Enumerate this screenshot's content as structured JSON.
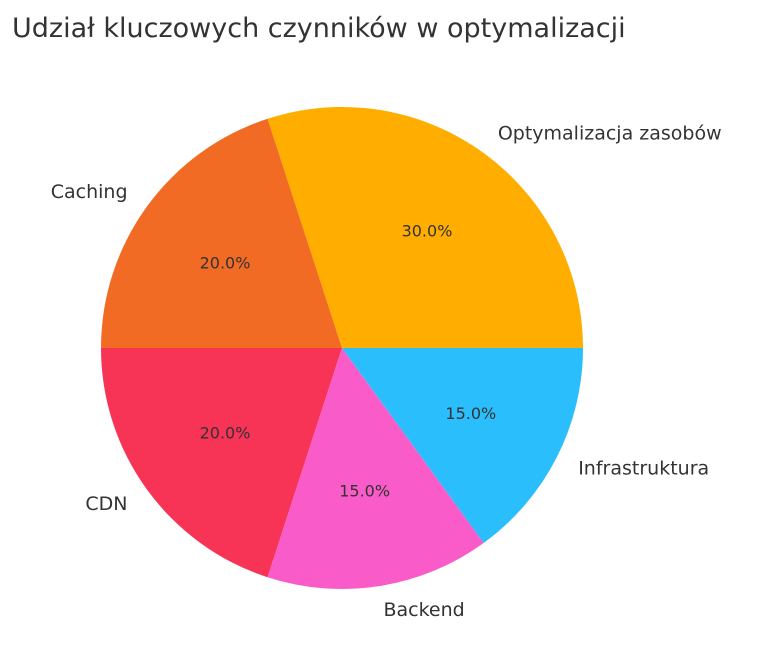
{
  "chart_data": {
    "type": "pie",
    "title": "Udział kluczowych czynników w optymalizacji",
    "categories": [
      "Optymalizacja zasobów",
      "Caching",
      "CDN",
      "Backend",
      "Infrastruktura"
    ],
    "values": [
      30.0,
      20.0,
      20.0,
      15.0,
      15.0
    ],
    "value_labels": [
      "30.0%",
      "20.0%",
      "20.0%",
      "15.0%",
      "15.0%"
    ],
    "colors": [
      "#FFAE00",
      "#F26B24",
      "#F73356",
      "#F95CC8",
      "#2BBEFC"
    ],
    "start_angle_deg": 0,
    "direction": "counterclockwise",
    "legend": "none"
  }
}
